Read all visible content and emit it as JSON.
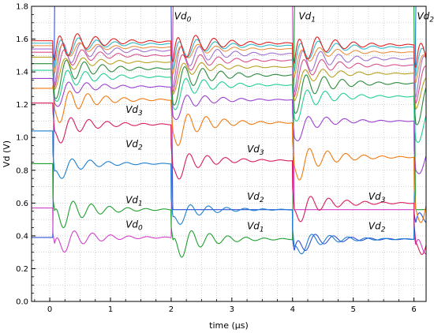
{
  "chart_data": {
    "type": "line",
    "title": "",
    "xlabel": "time (µs)",
    "ylabel": "Vd (V)",
    "xlim": [
      -0.3,
      6.2
    ],
    "ylim": [
      0.0,
      1.8
    ],
    "xticks": [
      0,
      1,
      2,
      3,
      4,
      5,
      6
    ],
    "xtick_labels": [
      "0",
      "1",
      "2",
      "3",
      "4",
      "5",
      "6"
    ],
    "yticks": [
      0.0,
      0.2,
      0.4,
      0.6,
      0.8,
      1.0,
      1.2,
      1.4,
      1.6,
      1.8
    ],
    "ytick_labels": [
      "0.0",
      "0.2",
      "0.4",
      "0.6",
      "0.8",
      "1.0",
      "1.2",
      "1.4",
      "1.6",
      "1.8"
    ],
    "grid": true,
    "switch_times": [
      0.05,
      2.0,
      4.0,
      6.0
    ],
    "series": [
      {
        "color": "#3050d8",
        "levels": [
          0.39,
          1.8,
          0.56,
          0.38,
          0.55
        ]
      },
      {
        "color": "#d040c8",
        "levels": [
          0.57,
          0.39,
          1.8,
          0.56,
          0.38
        ]
      },
      {
        "color": "#1f9f2f",
        "levels": [
          0.84,
          0.56,
          0.38,
          1.8,
          0.56
        ]
      },
      {
        "color": "#1c7fd0",
        "levels": [
          1.04,
          0.84,
          0.56,
          0.38,
          1.8
        ]
      },
      {
        "color": "#d81b60",
        "levels": [
          1.21,
          1.08,
          0.86,
          0.6,
          0.4
        ]
      },
      {
        "color": "#f07a10",
        "levels": [
          1.3,
          1.23,
          1.09,
          0.88,
          0.62
        ]
      },
      {
        "color": "#9a40d0",
        "levels": [
          1.36,
          1.31,
          1.23,
          1.1,
          0.9
        ]
      },
      {
        "color": "#20d090",
        "levels": [
          1.41,
          1.37,
          1.32,
          1.25,
          1.12
        ]
      },
      {
        "color": "#2a8a3a",
        "levels": [
          1.45,
          1.42,
          1.38,
          1.33,
          1.26
        ]
      },
      {
        "color": "#b8a020",
        "levels": [
          1.49,
          1.46,
          1.43,
          1.39,
          1.34
        ]
      },
      {
        "color": "#d8508a",
        "levels": [
          1.52,
          1.5,
          1.47,
          1.44,
          1.4
        ]
      },
      {
        "color": "#a070d0",
        "levels": [
          1.54,
          1.53,
          1.51,
          1.48,
          1.45
        ]
      },
      {
        "color": "#e89040",
        "levels": [
          1.56,
          1.55,
          1.54,
          1.52,
          1.49
        ]
      },
      {
        "color": "#30b8c8",
        "levels": [
          1.575,
          1.57,
          1.56,
          1.55,
          1.52
        ]
      },
      {
        "color": "#e02020",
        "levels": [
          1.59,
          1.585,
          1.575,
          1.565,
          1.54
        ]
      }
    ],
    "annotations": [
      {
        "base": "Vd",
        "sub": "3",
        "x": 1.25,
        "y": 1.15
      },
      {
        "base": "Vd",
        "sub": "2",
        "x": 1.25,
        "y": 0.94
      },
      {
        "base": "Vd",
        "sub": "1",
        "x": 1.25,
        "y": 0.6
      },
      {
        "base": "Vd",
        "sub": "0",
        "x": 1.25,
        "y": 0.45
      },
      {
        "base": "Vd",
        "sub": "0",
        "x": 2.05,
        "y": 1.72
      },
      {
        "base": "Vd",
        "sub": "1",
        "x": 4.1,
        "y": 1.72
      },
      {
        "base": "Vd",
        "sub": "2",
        "x": 6.05,
        "y": 1.72
      },
      {
        "base": "Vd",
        "sub": "3",
        "x": 3.25,
        "y": 0.91
      },
      {
        "base": "Vd",
        "sub": "2",
        "x": 3.25,
        "y": 0.62
      },
      {
        "base": "Vd",
        "sub": "1",
        "x": 3.25,
        "y": 0.44
      },
      {
        "base": "Vd",
        "sub": "3",
        "x": 5.25,
        "y": 0.62
      },
      {
        "base": "Vd",
        "sub": "2",
        "x": 5.25,
        "y": 0.44
      }
    ]
  }
}
